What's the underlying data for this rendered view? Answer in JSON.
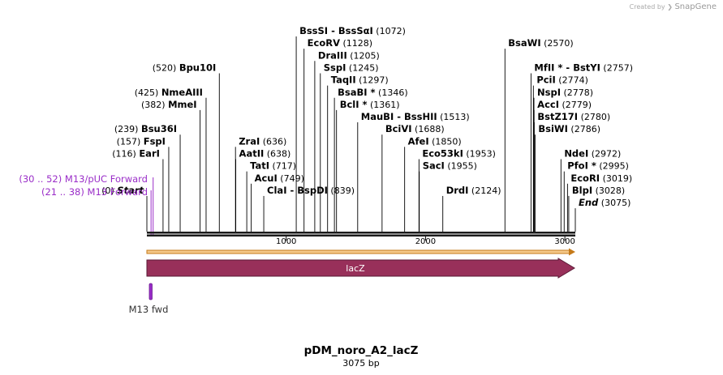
{
  "credit": {
    "prefix": "Created by",
    "brand": "SnapGene"
  },
  "plasmid": {
    "name": "pDM_noro_A2_lacZ",
    "length_label": "3075 bp",
    "length": 3075
  },
  "ruler": {
    "ticks": [
      1000,
      2000,
      3000
    ],
    "tick_labels": [
      "1000",
      "2000",
      "3000"
    ]
  },
  "sites": [
    {
      "name": "Start",
      "pos": 0,
      "pos_label": "(0)",
      "row": 13,
      "italic": true,
      "pos_first": true
    },
    {
      "name": "EarI",
      "pos": 116,
      "pos_label": "(116)",
      "row": 10,
      "pos_first": true
    },
    {
      "name": "FspI",
      "pos": 157,
      "pos_label": "(157)",
      "row": 9,
      "pos_first": true
    },
    {
      "name": "Bsu36I",
      "pos": 239,
      "pos_label": "(239)",
      "row": 8,
      "pos_first": true
    },
    {
      "name": "MmeI",
      "pos": 382,
      "pos_label": "(382)",
      "row": 6,
      "pos_first": true
    },
    {
      "name": "NmeAIII",
      "pos": 425,
      "pos_label": "(425)",
      "row": 5,
      "pos_first": true
    },
    {
      "name": "Bpu10I",
      "pos": 520,
      "pos_label": "(520)",
      "row": 3,
      "pos_first": true
    },
    {
      "name": "ZraI",
      "pos": 636,
      "pos_label": "(636)",
      "row": 9
    },
    {
      "name": "AatII",
      "pos": 638,
      "pos_label": "(638)",
      "row": 10
    },
    {
      "name": "TatI",
      "pos": 717,
      "pos_label": "(717)",
      "row": 11
    },
    {
      "name": "AcuI",
      "pos": 749,
      "pos_label": "(749)",
      "row": 12
    },
    {
      "name": "ClaI  -  BspDI",
      "pos": 839,
      "pos_label": "(839)",
      "row": 13
    },
    {
      "name": "BssSI  -  BssSαI",
      "pos": 1072,
      "pos_label": "(1072)",
      "row": 0
    },
    {
      "name": "EcoRV",
      "pos": 1128,
      "pos_label": "(1128)",
      "row": 1
    },
    {
      "name": "DraIII",
      "pos": 1205,
      "pos_label": "(1205)",
      "row": 2
    },
    {
      "name": "SspI",
      "pos": 1245,
      "pos_label": "(1245)",
      "row": 3
    },
    {
      "name": "TaqII",
      "pos": 1297,
      "pos_label": "(1297)",
      "row": 4
    },
    {
      "name": "BsaBI *",
      "pos": 1346,
      "pos_label": "(1346)",
      "row": 5
    },
    {
      "name": "BclI *",
      "pos": 1361,
      "pos_label": "(1361)",
      "row": 6
    },
    {
      "name": "MauBI  -  BssHII",
      "pos": 1513,
      "pos_label": "(1513)",
      "row": 7
    },
    {
      "name": "BciVI",
      "pos": 1688,
      "pos_label": "(1688)",
      "row": 8
    },
    {
      "name": "AfeI",
      "pos": 1850,
      "pos_label": "(1850)",
      "row": 9
    },
    {
      "name": "Eco53kI",
      "pos": 1953,
      "pos_label": "(1953)",
      "row": 10
    },
    {
      "name": "SacI",
      "pos": 1955,
      "pos_label": "(1955)",
      "row": 11
    },
    {
      "name": "DrdI",
      "pos": 2124,
      "pos_label": "(2124)",
      "row": 13
    },
    {
      "name": "BsaWI",
      "pos": 2570,
      "pos_label": "(2570)",
      "row": 1
    },
    {
      "name": "MfII *  -  BstYI",
      "pos": 2757,
      "pos_label": "(2757)",
      "row": 3
    },
    {
      "name": "PciI",
      "pos": 2774,
      "pos_label": "(2774)",
      "row": 4
    },
    {
      "name": "NspI",
      "pos": 2778,
      "pos_label": "(2778)",
      "row": 5
    },
    {
      "name": "AccI",
      "pos": 2779,
      "pos_label": "(2779)",
      "row": 6
    },
    {
      "name": "BstZ17I",
      "pos": 2780,
      "pos_label": "(2780)",
      "row": 7
    },
    {
      "name": "BsiWI",
      "pos": 2786,
      "pos_label": "(2786)",
      "row": 8
    },
    {
      "name": "NdeI",
      "pos": 2972,
      "pos_label": "(2972)",
      "row": 10
    },
    {
      "name": "PfoI *",
      "pos": 2995,
      "pos_label": "(2995)",
      "row": 11
    },
    {
      "name": "EcoRI",
      "pos": 3019,
      "pos_label": "(3019)",
      "row": 12
    },
    {
      "name": "BlpI",
      "pos": 3028,
      "pos_label": "(3028)",
      "row": 13
    },
    {
      "name": "End",
      "pos": 3075,
      "pos_label": "(3075)",
      "row": 14,
      "italic": true
    }
  ],
  "primers": [
    {
      "range_label": "(30 .. 52)",
      "name": "M13/pUC Forward",
      "pos": 45,
      "row": 0
    },
    {
      "range_label": "(21 .. 38)",
      "name": "M13 Forward",
      "pos": 30,
      "row": 1
    }
  ],
  "features": [
    {
      "name": "lacZ",
      "start": 1,
      "end": 3075,
      "color": "#98305a",
      "direction": "forward"
    }
  ],
  "orf": {
    "color": "#e8a23c",
    "direction": "forward"
  },
  "primer_binding": {
    "name": "M13 fwd",
    "color": "#9a2dc8"
  },
  "colors": {
    "primer": "#9a2dc8",
    "backbone": "#1a1a1a"
  }
}
